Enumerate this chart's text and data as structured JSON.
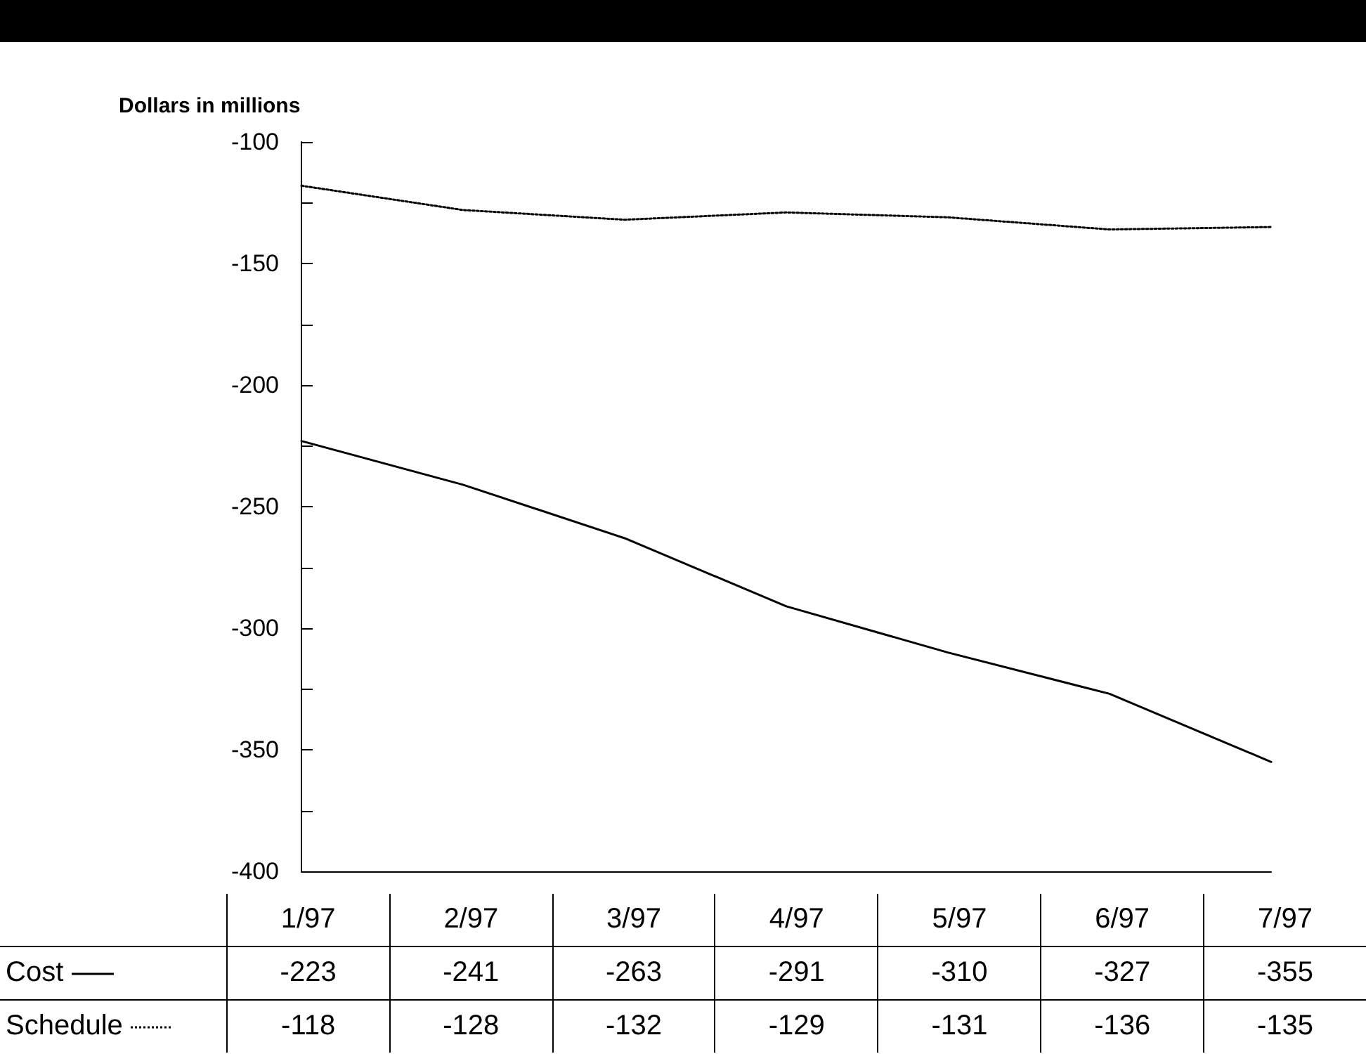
{
  "chart_data": {
    "type": "line",
    "ylabel": "Dollars in millions",
    "categories": [
      "1/97",
      "2/97",
      "3/97",
      "4/97",
      "5/97",
      "6/97",
      "7/97"
    ],
    "series": [
      {
        "name": "Cost",
        "color": "#000000",
        "line_style": "solid",
        "values": [
          -223,
          -241,
          -263,
          -291,
          -310,
          -327,
          -355
        ]
      },
      {
        "name": "Schedule",
        "color": "#000000",
        "line_style": "dotted",
        "values": [
          -118,
          -128,
          -132,
          -129,
          -131,
          -136,
          -135
        ]
      }
    ],
    "ylim": [
      -400,
      -100
    ],
    "yticks": [
      -400,
      {
        "value": -375,
        "label": null
      },
      -350,
      {
        "value": -325,
        "label": null
      },
      -300,
      {
        "value": -275,
        "label": null
      },
      -250,
      {
        "value": -225,
        "label": null
      },
      -200,
      {
        "value": -175,
        "label": null
      },
      -150,
      {
        "value": -125,
        "label": null
      },
      -100
    ],
    "data_labels": true,
    "legend": "bottom",
    "grid": false,
    "marker": "none"
  }
}
